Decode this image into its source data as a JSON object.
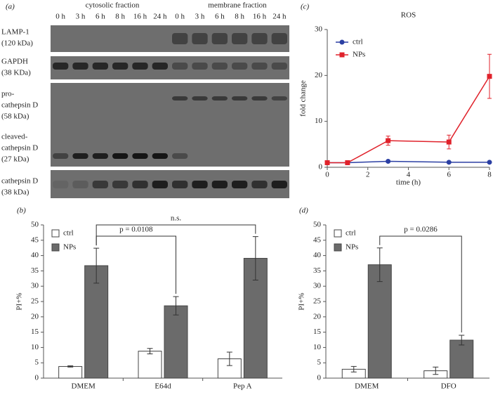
{
  "blot": {
    "panel_label": "(a)",
    "fractions": [
      "cytosolic fraction",
      "membrane fraction"
    ],
    "lanes": [
      "0 h",
      "3 h",
      "6 h",
      "8 h",
      "16 h",
      "24 h",
      "0 h",
      "3 h",
      "6 h",
      "8 h",
      "16 h",
      "24 h"
    ],
    "rows": [
      [
        "LAMP-1",
        "(120 kDa)"
      ],
      [
        "GAPDH",
        "(38 KDa)"
      ],
      [
        "pro-",
        "cathepsin D",
        "(58 kDa)"
      ],
      [
        "cleaved-",
        "cathepsin D",
        "(27 kDa)"
      ],
      [
        "cathepsin D",
        "(38 kDa)"
      ]
    ]
  },
  "chart_data": [
    {
      "type": "line",
      "panel_label": "(c)",
      "title": "ROS",
      "x_label": "time (h)",
      "y_label": "fold change",
      "xlim": [
        0,
        8
      ],
      "xticks": [
        0,
        2,
        4,
        6,
        8
      ],
      "ylim": [
        0,
        30
      ],
      "yticks": [
        0,
        10,
        20,
        30
      ],
      "series": [
        {
          "name": "ctrl",
          "color": "#2b3fa3",
          "x": [
            0,
            1,
            3,
            6,
            8
          ],
          "values": [
            1,
            1,
            1.3,
            1.1,
            1.1
          ],
          "errors": [
            0.2,
            0.2,
            0.2,
            0.2,
            0.2
          ]
        },
        {
          "name": "NPs",
          "color": "#e0222b",
          "x": [
            0,
            1,
            3,
            6,
            8
          ],
          "values": [
            1,
            1,
            5.8,
            5.5,
            19.8
          ],
          "errors": [
            0.3,
            0.3,
            1,
            1.5,
            4.8
          ]
        }
      ]
    },
    {
      "type": "bar",
      "panel_label": "(b)",
      "y_label": "PI+%",
      "categories": [
        "DMEM",
        "E64d",
        "Pep A"
      ],
      "ylim": [
        0,
        50
      ],
      "yticks": [
        0,
        5,
        10,
        15,
        20,
        25,
        30,
        35,
        40,
        45,
        50
      ],
      "series": [
        {
          "name": "ctrl",
          "color": "#ffffff",
          "values": [
            3.8,
            8.8,
            6.3
          ],
          "errors": [
            0.2,
            0.9,
            2.2
          ]
        },
        {
          "name": "NPs",
          "color": "#6b6b6b",
          "values": [
            36.7,
            23.6,
            39.1
          ],
          "errors": [
            5.7,
            3.0,
            7.1
          ]
        }
      ],
      "annotations": [
        "p = 0.0108",
        "n.s."
      ]
    },
    {
      "type": "bar",
      "panel_label": "(d)",
      "y_label": "PI+%",
      "categories": [
        "DMEM",
        "DFO"
      ],
      "ylim": [
        0,
        50
      ],
      "yticks": [
        0,
        5,
        10,
        15,
        20,
        25,
        30,
        35,
        40,
        45,
        50
      ],
      "series": [
        {
          "name": "ctrl",
          "color": "#ffffff",
          "values": [
            2.9,
            2.4
          ],
          "errors": [
            0.9,
            1.2
          ]
        },
        {
          "name": "NPs",
          "color": "#6b6b6b",
          "values": [
            37,
            12.4
          ],
          "errors": [
            5.5,
            1.6
          ]
        }
      ],
      "annotations": [
        "p = 0.0286"
      ]
    }
  ]
}
